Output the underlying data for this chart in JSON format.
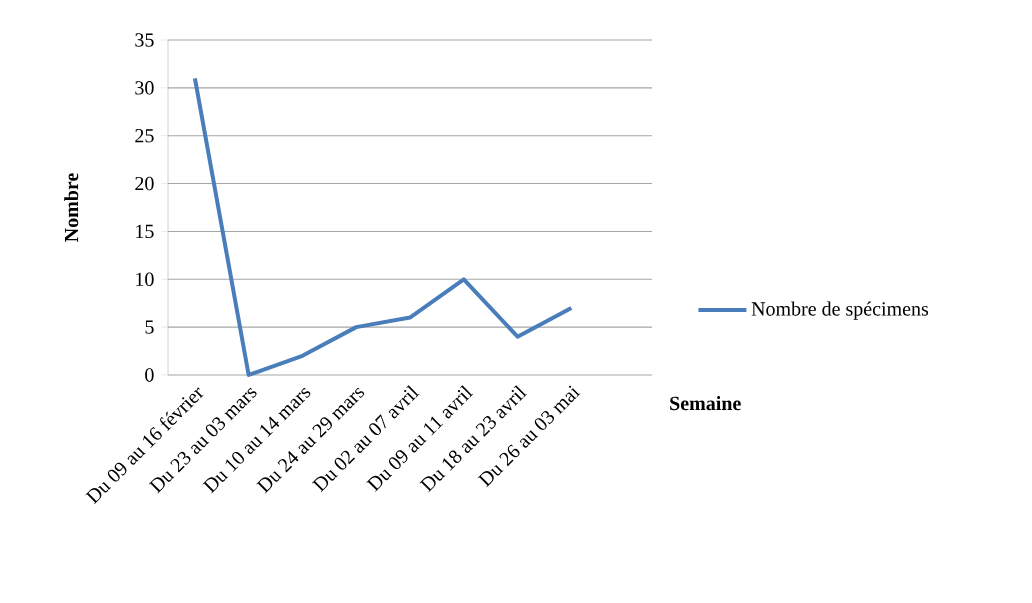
{
  "chart_data": {
    "type": "line",
    "xlabel": "Semaine",
    "ylabel": "Nombre",
    "categories": [
      "Du 09 au 16 février",
      "Du 23 au 03 mars",
      "Du 10 au 14 mars",
      "Du 24 au 29 mars",
      "Du 02 au 07 avril",
      "Du 09 au 11 avril",
      "Du 18 au 23 avril",
      "Du 26 au 03 mai"
    ],
    "series": [
      {
        "name": "Nombre de spécimens",
        "color": "#4a7ebb",
        "values": [
          31,
          0,
          2,
          5,
          6,
          10,
          4,
          7
        ]
      }
    ],
    "ylim": [
      0,
      35
    ],
    "yticks": [
      0,
      5,
      10,
      15,
      20,
      25,
      30,
      35
    ],
    "grid": "y",
    "legend": "right",
    "marker": "none",
    "line_style": "solid"
  }
}
